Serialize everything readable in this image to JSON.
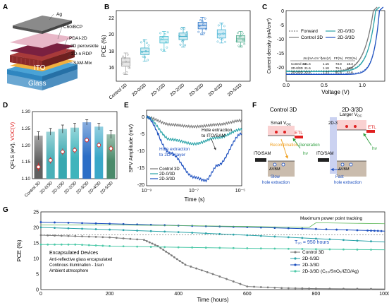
{
  "panels": {
    "A": {
      "letter": "A",
      "layers": [
        "Ag",
        "C60/BCP",
        "PDAI-2D",
        "3D perovskite",
        "2D-n RDP",
        "SAM-Mix",
        "ITO",
        "Glass"
      ]
    },
    "B": {
      "letter": "B",
      "ylabel": "PCE (%)",
      "yticks": [
        "16",
        "18",
        "20",
        "22"
      ],
      "categories": [
        "Control 3D",
        "2D-0/3D",
        "2D-1/3D",
        "2D-2/3D",
        "2D-3/3D",
        "2D-4/3D",
        "2D-5/3D"
      ]
    },
    "C": {
      "letter": "C",
      "xlabel": "Voltage (V)",
      "ylabel": "Current density (mA/cm²)",
      "xticks": [
        "0.0",
        "0.5",
        "1.0"
      ],
      "yticks": [
        "0",
        "-5",
        "-10",
        "-15",
        "-20"
      ],
      "legend": [
        "Forward",
        "Control 3D",
        "2D-0/3D",
        "2D-3/3D"
      ],
      "table_header": [
        "",
        "Jsc(mA cm⁻²)",
        "Voc(V)",
        "FF(%)",
        "PCE(%)"
      ],
      "table_rows": [
        [
          "Control 3D",
          "21.6",
          "1.15",
          "73.8",
          "18.3"
        ],
        [
          "2D-0/3D",
          "21.6",
          "1.18",
          "76.1",
          "19.2"
        ],
        [
          "2D-3/3D",
          "22.6",
          "1.23",
          "81.5",
          "22.6"
        ]
      ]
    },
    "D": {
      "letter": "D",
      "ylabel_main": "QFLS (eV), ",
      "ylabel_voc": "VOC(V)",
      "yticks": [
        "1.10",
        "1.15",
        "1.20",
        "1.25",
        "1.30"
      ],
      "categories": [
        "Control 3D",
        "2D-0/3D",
        "2D-1/3D",
        "2D-2/3D",
        "2D-3/3D",
        "2D-4/3D",
        "2D-5/3D"
      ]
    },
    "E": {
      "letter": "E",
      "xlabel": "Time (s)",
      "ylabel": "SPV Amplitude (mV)",
      "xticks": [
        "10⁻⁹",
        "10⁻⁷",
        "10⁻⁵"
      ],
      "yticks": [
        "0",
        "-5",
        "-10",
        "-15",
        "-20"
      ],
      "legend": [
        "Control 3D",
        "2D-0/3D",
        "2D-3/3D"
      ],
      "annotation1": [
        "Hole extraction",
        "to ITO/SAM"
      ],
      "annotation2": [
        "Hole extraction",
        "to 2D-3 layer"
      ]
    },
    "F": {
      "letter": "F",
      "left_title": "Control 3D",
      "right_title": "2D-3/3D",
      "small_voc": "Small V",
      "large_voc": "Larger V",
      "voc_sub": "OC",
      "etl": "ETL",
      "recombination": "Recombination",
      "generation": "Generation",
      "hv": "hν",
      "ito_sam": "ITO/SAM",
      "delta_vbm": "ΔVBM",
      "slow": [
        "Slow",
        "hole extraction"
      ],
      "fast": [
        "Fast",
        "hole extraction"
      ],
      "layer_2d3": "2D-3"
    },
    "G": {
      "letter": "G",
      "xlabel": "Time (hours)",
      "ylabel": "PCE (%)",
      "xticks": [
        "0",
        "200",
        "400",
        "600",
        "800",
        "1000"
      ],
      "yticks": [
        "0",
        "5",
        "10",
        "15",
        "20",
        "25"
      ],
      "mppt": "Maximum power point tracking",
      "t90": "T₉₀ = 950 hours",
      "notes": [
        "Encapsulated Devices",
        "Anti-reflective glass encapsulated",
        "Continous illumination - 1sun",
        "Ambient atmosphere"
      ],
      "legend": [
        "Control 3D",
        "2D-0/3D",
        "2D-3/3D",
        "2D-3/3D (C₆₀/SnO₂/IZO/Ag)"
      ]
    }
  },
  "colors": {
    "control": "#7a7a7a",
    "d0": "#2aa3a8",
    "d3": "#1c4fbf",
    "d3izo": "#4dc9a8",
    "mppt": "#59b653",
    "red": "#e02020",
    "orange": "#f0a020",
    "green": "#2e9e3e"
  },
  "chart_data": [
    {
      "panel": "B",
      "type": "box",
      "categories": [
        "Control 3D",
        "2D-0/3D",
        "2D-1/3D",
        "2D-2/3D",
        "2D-3/3D",
        "2D-4/3D",
        "2D-5/3D"
      ],
      "median": [
        17.3,
        18.6,
        20.0,
        20.4,
        21.7,
        20.7,
        20.1
      ],
      "q1": [
        16.8,
        18.2,
        19.6,
        20.0,
        21.3,
        20.2,
        19.7
      ],
      "q3": [
        17.8,
        19.0,
        20.4,
        20.8,
        22.1,
        21.2,
        20.5
      ],
      "min": [
        15.8,
        17.4,
        18.6,
        19.1,
        20.6,
        19.6,
        19.1
      ],
      "max": [
        18.4,
        20.0,
        21.0,
        21.5,
        22.7,
        22.0,
        21.0
      ],
      "ylim": [
        15,
        23.5
      ]
    },
    {
      "panel": "C",
      "type": "line",
      "xlim": [
        0,
        1.3
      ],
      "ylim": [
        -25,
        0
      ],
      "series": [
        {
          "name": "Control 3D",
          "jsc": 21.6,
          "voc": 1.15,
          "ff": 73.8
        },
        {
          "name": "2D-0/3D",
          "jsc": 21.6,
          "voc": 1.18,
          "ff": 76.1
        },
        {
          "name": "2D-3/3D",
          "jsc": 22.6,
          "voc": 1.23,
          "ff": 81.5
        }
      ]
    },
    {
      "panel": "D",
      "type": "bar",
      "categories": [
        "Control 3D",
        "2D-0/3D",
        "2D-1/3D",
        "2D-2/3D",
        "2D-3/3D",
        "2D-4/3D",
        "2D-5/3D"
      ],
      "qfls": [
        1.228,
        1.24,
        1.248,
        1.252,
        1.268,
        1.255,
        1.232
      ],
      "qfls_err": [
        0.012,
        0.01,
        0.012,
        0.013,
        0.008,
        0.01,
        0.012
      ],
      "voc": [
        1.135,
        1.155,
        1.18,
        1.185,
        1.215,
        1.2,
        1.19
      ],
      "voc_err": [
        0.012,
        0.01,
        0.01,
        0.01,
        0.008,
        0.01,
        0.01
      ],
      "ylim": [
        1.1,
        1.3
      ]
    },
    {
      "panel": "E",
      "type": "line",
      "x_scale": "log",
      "xlim": [
        1e-09,
        1e-05
      ],
      "ylim": [
        -20,
        2
      ],
      "series": [
        {
          "name": "Control 3D",
          "x": [
            1e-09,
            1e-08,
            1e-07,
            1e-06,
            1e-05
          ],
          "y": [
            0,
            -2.2,
            -2.8,
            -2.2,
            -1.0
          ]
        },
        {
          "name": "2D-0/3D",
          "x": [
            1e-09,
            1e-08,
            1e-07,
            1e-06,
            1e-05
          ],
          "y": [
            0,
            -6.5,
            -7.8,
            -6.0,
            -3.6
          ]
        },
        {
          "name": "2D-3/3D",
          "x": [
            1e-09,
            1e-08,
            1e-07,
            3e-07,
            1e-06,
            1e-05
          ],
          "y": [
            0,
            -10.5,
            -17.5,
            -18.5,
            -14.0,
            -4.8
          ]
        }
      ]
    },
    {
      "panel": "G",
      "type": "line",
      "xlim": [
        0,
        1000
      ],
      "ylim": [
        0,
        25
      ],
      "series": [
        {
          "name": "Control 3D",
          "x": [
            0,
            100,
            200,
            300,
            340,
            380,
            420,
            500,
            600,
            700,
            800,
            1000
          ],
          "y": [
            17.5,
            17.2,
            16.8,
            16.0,
            14.0,
            11.0,
            8.0,
            5.0,
            1.0,
            0.5,
            0.3,
            0.2
          ]
        },
        {
          "name": "2D-0/3D",
          "x": [
            0,
            200,
            400,
            600,
            800,
            1000
          ],
          "y": [
            20.0,
            19.3,
            18.5,
            17.5,
            16.4,
            15.3
          ]
        },
        {
          "name": "2D-3/3D",
          "x": [
            0,
            200,
            400,
            600,
            800,
            950,
            1000
          ],
          "y": [
            21.7,
            21.2,
            20.6,
            20.1,
            19.5,
            19.0,
            18.8
          ]
        },
        {
          "name": "2D-3/3D (C₆₀/SnO₂/IZO/Ag)",
          "x": [
            0,
            100,
            200,
            400,
            600,
            800,
            1000
          ],
          "y": [
            14.5,
            14.5,
            14.0,
            13.6,
            13.3,
            13.0,
            12.8
          ]
        },
        {
          "name": "Maximum power point tracking",
          "x": [
            0,
            200,
            400,
            600,
            780,
            800,
            1000
          ],
          "y": [
            20.8,
            20.8,
            20.6,
            20.3,
            20.0,
            21.5,
            21.2
          ]
        }
      ]
    }
  ]
}
